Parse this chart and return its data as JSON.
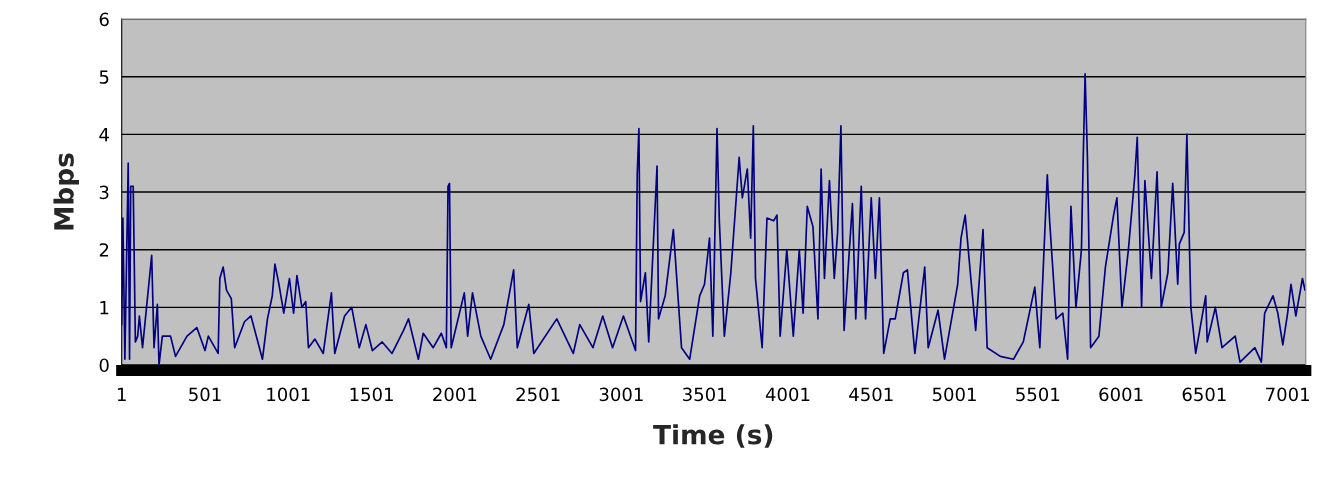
{
  "chart_data": {
    "type": "line",
    "xlabel": "Time (s)",
    "ylabel": "Mbps",
    "x": [
      1,
      8,
      20,
      40,
      48,
      55,
      70,
      83,
      97,
      107,
      126,
      181,
      195,
      215,
      225,
      245,
      294,
      324,
      393,
      452,
      501,
      521,
      580,
      590,
      610,
      630,
      659,
      679,
      738,
      777,
      846,
      876,
      905,
      921,
      945,
      974,
      1008,
      1033,
      1053,
      1083,
      1106,
      1122,
      1161,
      1211,
      1260,
      1280,
      1339,
      1382,
      1427,
      1467,
      1506,
      1565,
      1624,
      1693,
      1723,
      1782,
      1811,
      1871,
      1920,
      1950,
      1960,
      1969,
      1979,
      2058,
      2078,
      2107,
      2157,
      2216,
      2295,
      2354,
      2376,
      2445,
      2475,
      2613,
      2712,
      2751,
      2830,
      2889,
      2948,
      3013,
      3086,
      3096,
      3106,
      3116,
      3145,
      3165,
      3215,
      3224,
      3264,
      3313,
      3362,
      3411,
      3471,
      3500,
      3530,
      3550,
      3575,
      3589,
      3619,
      3658,
      3708,
      3727,
      3757,
      3777,
      3793,
      3806,
      3846,
      3875,
      3915,
      3935,
      3954,
      3994,
      4033,
      4069,
      4092,
      4117,
      4151,
      4181,
      4200,
      4220,
      4250,
      4279,
      4299,
      4319,
      4338,
      4388,
      4408,
      4441,
      4467,
      4501,
      4526,
      4550,
      4576,
      4615,
      4645,
      4694,
      4718,
      4763,
      4822,
      4843,
      4902,
      4941,
      5020,
      5040,
      5065,
      5099,
      5128,
      5148,
      5172,
      5197,
      5276,
      5355,
      5414,
      5483,
      5513,
      5558,
      5572,
      5611,
      5651,
      5680,
      5700,
      5730,
      5763,
      5773,
      5785,
      5799,
      5818,
      5868,
      5907,
      5956,
      5976,
      6006,
      6045,
      6084,
      6098,
      6124,
      6144,
      6183,
      6217,
      6242,
      6282,
      6311,
      6341,
      6351,
      6380,
      6396,
      6420,
      6449,
      6509,
      6518,
      6567,
      6607,
      6686,
      6715,
      6804,
      6843,
      6863,
      6913,
      6942,
      6972,
      7001,
      7021,
      7050,
      7090,
      7105
    ],
    "series": [
      {
        "color": "#000080",
        "values": [
          0.7,
          2.55,
          0.1,
          3.5,
          0.1,
          3.1,
          3.1,
          0.4,
          0.5,
          0.85,
          0.3,
          1.9,
          0.3,
          1.05,
          0.0,
          0.5,
          0.5,
          0.15,
          0.5,
          0.65,
          0.25,
          0.5,
          0.2,
          1.5,
          1.7,
          1.3,
          1.15,
          0.3,
          0.75,
          0.85,
          0.1,
          0.8,
          1.2,
          1.75,
          1.4,
          0.9,
          1.5,
          0.9,
          1.55,
          1.0,
          1.1,
          0.3,
          0.45,
          0.2,
          1.25,
          0.2,
          0.85,
          1.0,
          0.3,
          0.7,
          0.25,
          0.4,
          0.2,
          0.6,
          0.8,
          0.1,
          0.55,
          0.3,
          0.55,
          0.3,
          3.1,
          3.15,
          0.3,
          1.25,
          0.5,
          1.25,
          0.5,
          0.1,
          0.7,
          1.65,
          0.3,
          1.05,
          0.2,
          0.8,
          0.2,
          0.7,
          0.3,
          0.85,
          0.3,
          0.85,
          0.25,
          3.3,
          4.1,
          1.1,
          1.6,
          0.4,
          3.45,
          0.8,
          1.2,
          2.35,
          0.3,
          0.1,
          1.2,
          1.4,
          2.2,
          0.5,
          4.1,
          2.5,
          0.5,
          1.6,
          3.6,
          2.9,
          3.4,
          2.2,
          4.15,
          1.5,
          0.3,
          2.55,
          2.5,
          2.6,
          0.5,
          2.0,
          0.5,
          2.0,
          0.9,
          2.75,
          2.4,
          0.8,
          3.4,
          1.5,
          3.2,
          1.5,
          2.3,
          4.15,
          0.6,
          2.8,
          0.8,
          3.1,
          0.8,
          2.9,
          1.5,
          2.9,
          0.2,
          0.8,
          0.8,
          1.6,
          1.65,
          0.2,
          1.7,
          0.3,
          0.95,
          0.1,
          1.4,
          2.2,
          2.6,
          1.5,
          0.6,
          1.4,
          2.35,
          0.3,
          0.15,
          0.1,
          0.4,
          1.35,
          0.3,
          3.3,
          2.5,
          0.8,
          0.9,
          0.1,
          2.75,
          1.0,
          2.0,
          3.5,
          5.05,
          3.6,
          0.3,
          0.5,
          1.7,
          2.6,
          2.9,
          1.0,
          2.0,
          3.3,
          3.95,
          1.0,
          3.2,
          1.5,
          3.35,
          1.0,
          1.6,
          3.15,
          1.4,
          2.1,
          2.3,
          4.0,
          1.0,
          0.2,
          1.2,
          0.4,
          1.0,
          0.3,
          0.5,
          0.05,
          0.3,
          0.05,
          0.9,
          1.2,
          0.9,
          0.35,
          0.9,
          1.4,
          0.85,
          1.5,
          1.3
        ]
      }
    ],
    "xlim": [
      1,
      7110
    ],
    "xticks": [
      1,
      501,
      1001,
      1501,
      2001,
      2501,
      3001,
      3501,
      4001,
      4501,
      5001,
      5501,
      6001,
      6501,
      7001
    ],
    "ylim": [
      0,
      6
    ],
    "yticks": [
      0,
      1,
      2,
      3,
      4,
      5,
      6
    ],
    "grid": "y"
  }
}
